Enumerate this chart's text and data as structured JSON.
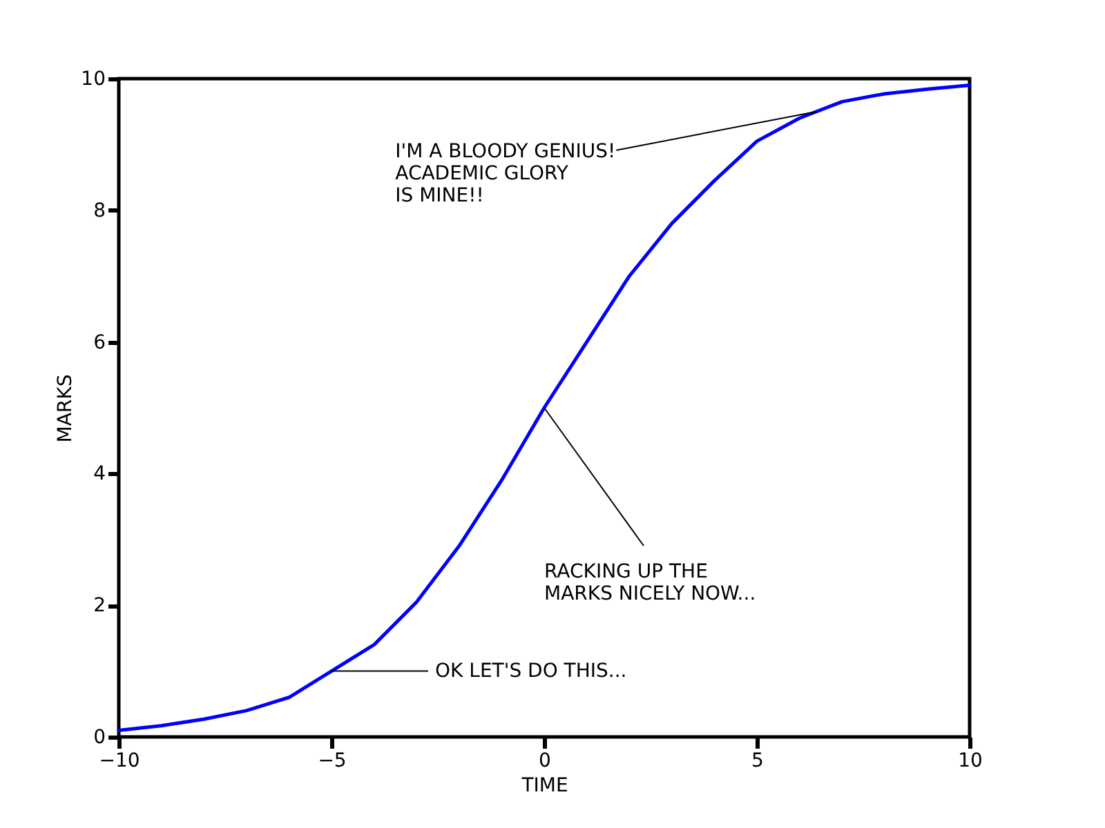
{
  "chart_data": {
    "type": "line",
    "xlabel": "TIME",
    "ylabel": "MARKS",
    "x": [
      -10,
      -9,
      -8,
      -7,
      -6,
      -5,
      -4,
      -3,
      -2,
      -1,
      0,
      1,
      2,
      3,
      4,
      5,
      6,
      7,
      8,
      9,
      10
    ],
    "series": [
      {
        "color": "#0000ff",
        "values": [
          0.1,
          0.17,
          0.27,
          0.4,
          0.6,
          1.0,
          1.4,
          2.05,
          2.9,
          3.9,
          5.0,
          6.0,
          7.0,
          7.8,
          8.45,
          9.05,
          9.4,
          9.65,
          9.77,
          9.84,
          9.9
        ]
      }
    ],
    "xlim": [
      -10,
      10
    ],
    "xticks": [
      -10,
      -5,
      0,
      5,
      10
    ],
    "ylim": [
      0,
      10
    ],
    "yticks": [
      0,
      2,
      4,
      6,
      8,
      10
    ],
    "grid": false,
    "line_style": "solid",
    "marker": "none",
    "annotations": [
      {
        "text": "OK LET'S DO THIS...",
        "x": -5,
        "y": 1
      },
      {
        "text": "RACKING UP THE\nMARKS NICELY NOW...",
        "x": 0,
        "y": 5
      },
      {
        "text": "I'M A BLOODY GENIUS!\nACADEMIC GLORY\nIS MINE!!",
        "x": 6.4,
        "y": 9.5
      }
    ]
  }
}
